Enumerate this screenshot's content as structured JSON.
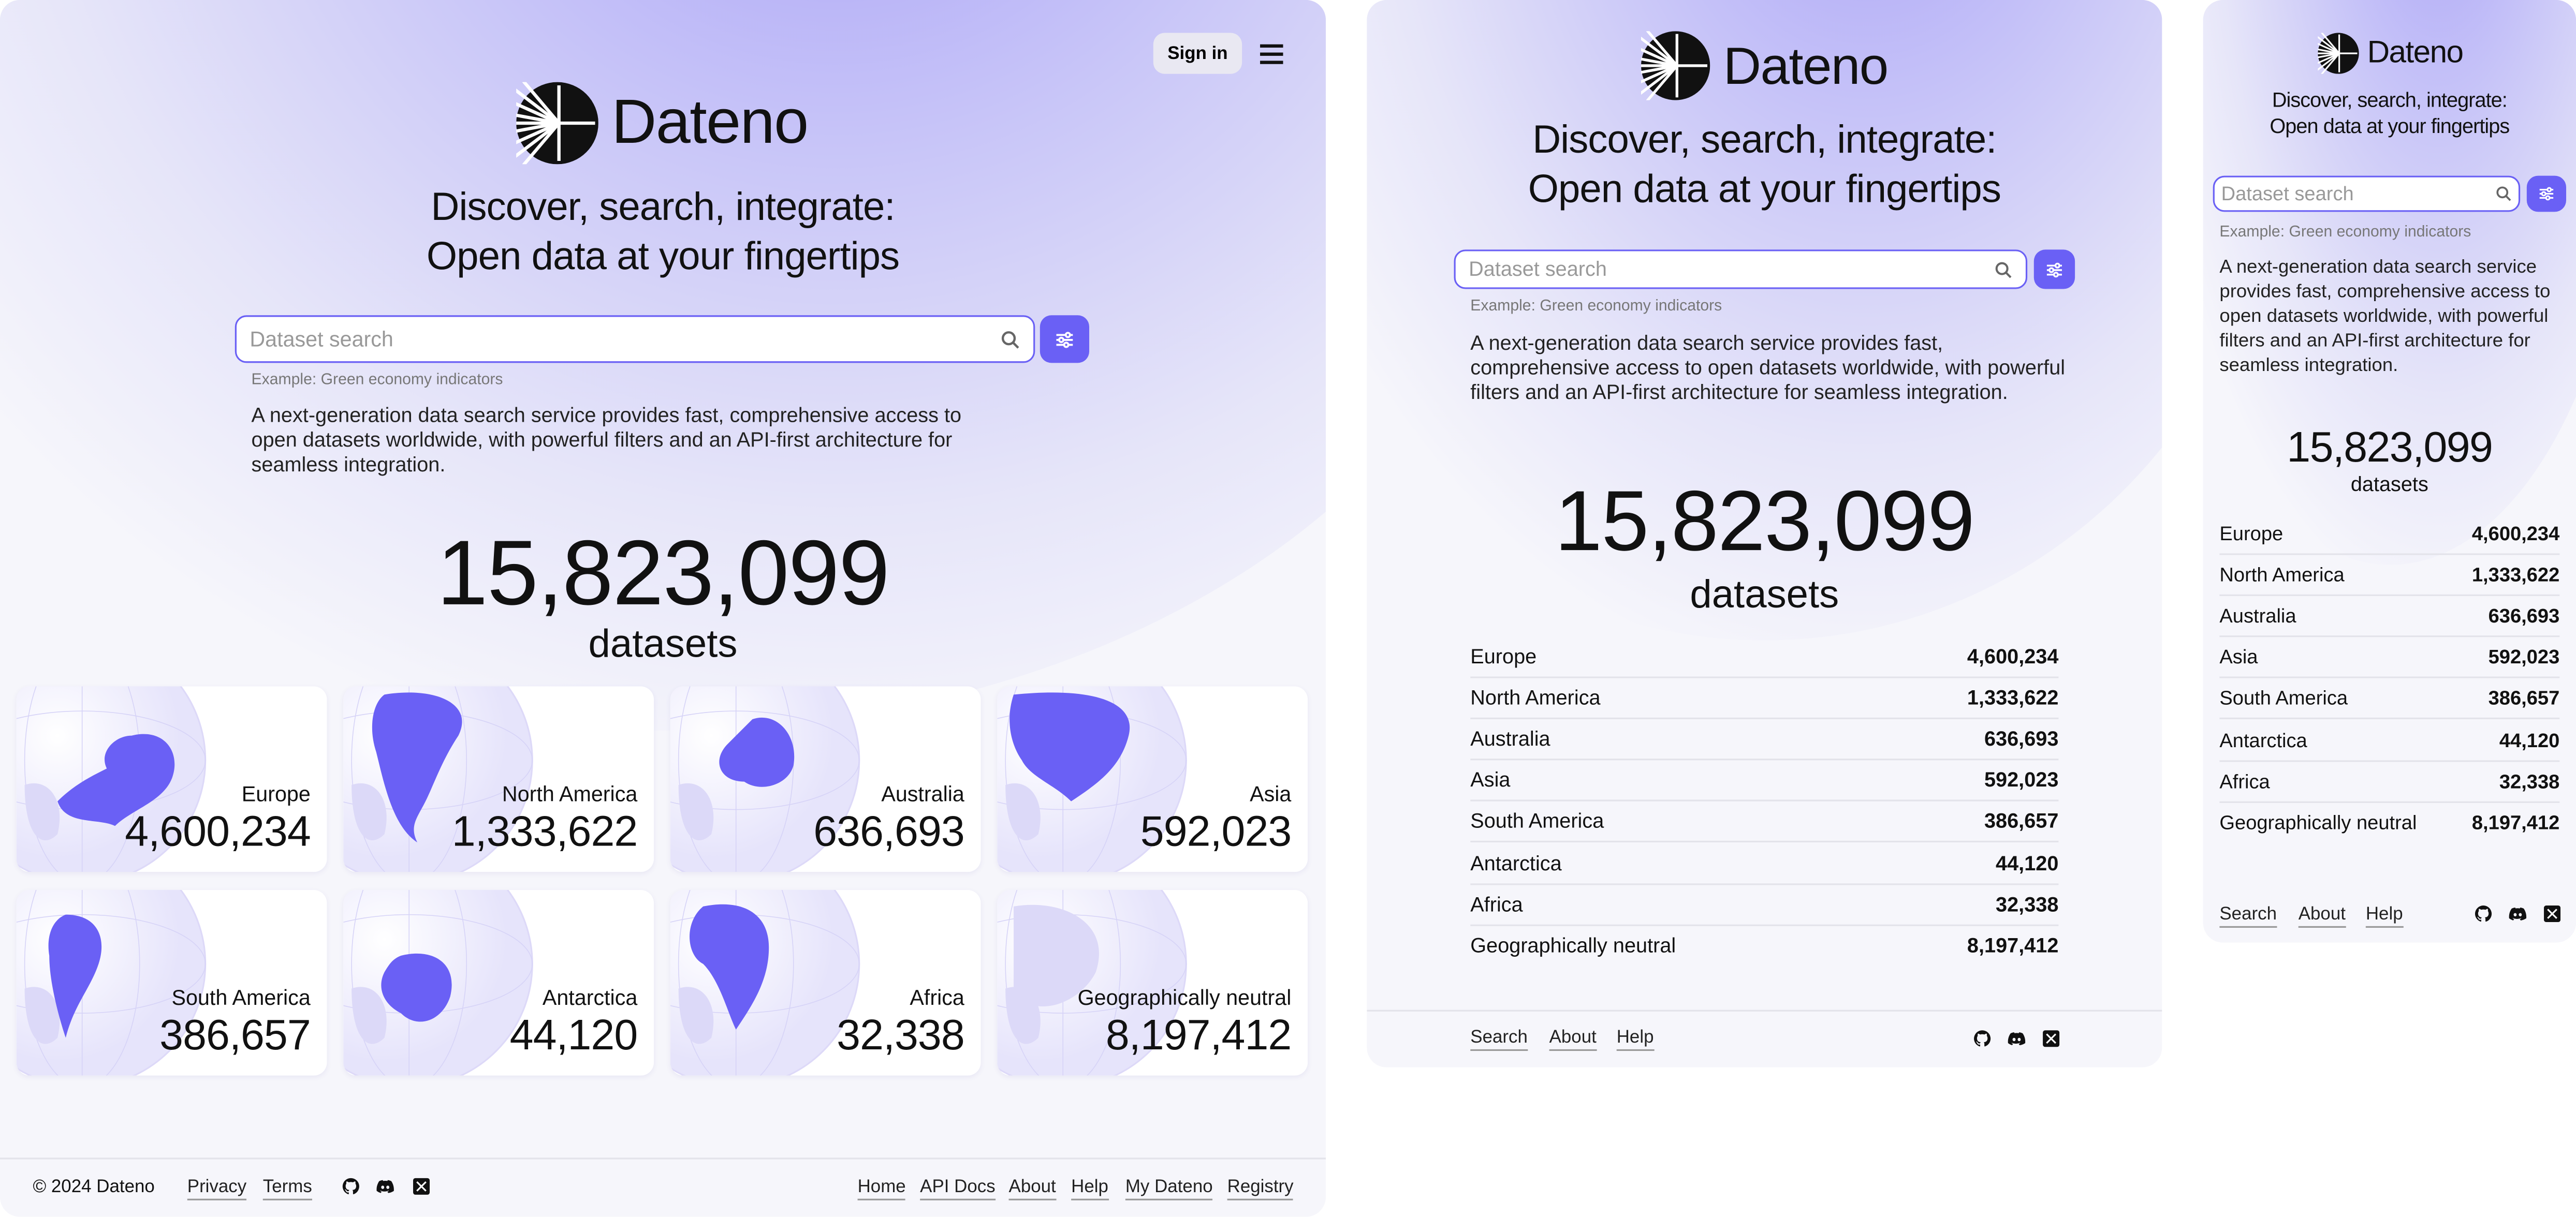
{
  "brand": {
    "name": "Dateno"
  },
  "header": {
    "sign_in": "Sign in",
    "menu_icon": "hamburger-icon"
  },
  "hero": {
    "line1": "Discover, search, integrate:",
    "line2": "Open data at your fingertips"
  },
  "search": {
    "placeholder": "Dataset search",
    "value": "",
    "example": "Example: Green economy indicators",
    "search_icon": "magnifier-icon",
    "filter_icon": "sliders-icon"
  },
  "description": "A next-generation data search service provides fast, comprehensive access to open datasets worldwide, with powerful filters and an API-first architecture for seamless integration.",
  "stats": {
    "total": "15,823,099",
    "label": "datasets"
  },
  "regions": [
    {
      "name": "Europe",
      "count": "4,600,234"
    },
    {
      "name": "North America",
      "count": "1,333,622"
    },
    {
      "name": "Australia",
      "count": "636,693"
    },
    {
      "name": "Asia",
      "count": "592,023"
    },
    {
      "name": "South America",
      "count": "386,657"
    },
    {
      "name": "Antarctica",
      "count": "44,120"
    },
    {
      "name": "Africa",
      "count": "32,338"
    },
    {
      "name": "Geographically neutral",
      "count": "8,197,412"
    }
  ],
  "footer": {
    "copyright": "© 2024 Dateno",
    "legal": [
      "Privacy",
      "Terms"
    ],
    "nav": [
      "Home",
      "API Docs",
      "About",
      "Help",
      "My Dateno",
      "Registry"
    ],
    "compact_nav": [
      "Search",
      "About",
      "Help"
    ],
    "social": [
      "github-icon",
      "discord-icon",
      "x-icon"
    ]
  },
  "colors": {
    "accent": "#6a60f5",
    "background": "#f6f6fb"
  }
}
